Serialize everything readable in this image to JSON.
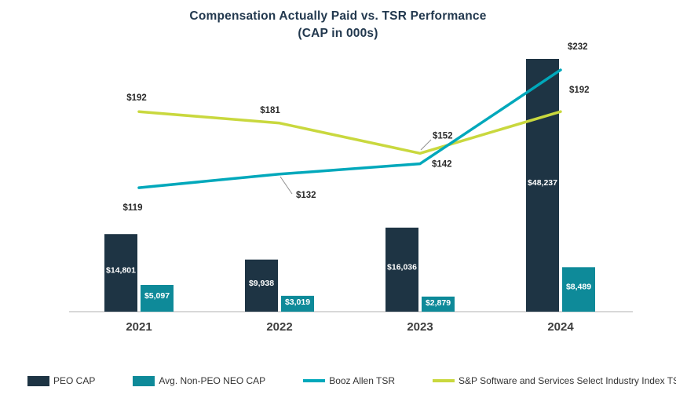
{
  "title": {
    "line1": "Compensation Actually Paid vs. TSR Performance",
    "line2": "(CAP in 000s)"
  },
  "colors": {
    "peo": "#1e3444",
    "neo": "#0e8a99",
    "booz_line": "#00a8bb",
    "sp_line": "#c9d83e",
    "axis": "#cccccc",
    "leader": "#909090"
  },
  "chart_data": {
    "type": "bar+line combo",
    "categories": [
      "2021",
      "2022",
      "2023",
      "2024"
    ],
    "series": [
      {
        "name": "PEO CAP",
        "type": "bar",
        "values": [
          14801,
          9938,
          16036,
          48237
        ],
        "labels": [
          "$14,801",
          "$9,938",
          "$16,036",
          "$48,237"
        ]
      },
      {
        "name": "Avg. Non-PEO NEO CAP",
        "type": "bar",
        "values": [
          5097,
          3019,
          2879,
          8489
        ],
        "labels": [
          "$5,097",
          "$3,019",
          "$2,879",
          "$8,489"
        ]
      },
      {
        "name": "Booz Allen TSR",
        "type": "line",
        "values": [
          119,
          132,
          142,
          232
        ],
        "labels": [
          "$119",
          "$132",
          "$142",
          "$232"
        ]
      },
      {
        "name": "S&P Software and Services Select Industry Index TSR",
        "type": "line",
        "values": [
          192,
          181,
          152,
          192
        ],
        "labels": [
          "$192",
          "$181",
          "$152",
          "$192"
        ]
      }
    ],
    "title": "Compensation Actually Paid vs. TSR Performance (CAP in 000s)",
    "xlabel": "",
    "ylabel": "",
    "ylim_bar": [
      0,
      50000
    ],
    "ylim_tsr": [
      0,
      250
    ],
    "grid": false,
    "legend_position": "bottom"
  },
  "legend": {
    "items": [
      {
        "label": "PEO CAP",
        "swatch": "bar",
        "color_key": "peo"
      },
      {
        "label": "Avg. Non-PEO NEO CAP",
        "swatch": "bar",
        "color_key": "neo"
      },
      {
        "label": "Booz Allen TSR",
        "swatch": "line",
        "color_key": "booz_line"
      },
      {
        "label": "S&P Software and Services Select Industry Index TSR",
        "swatch": "line",
        "color_key": "sp_line"
      }
    ]
  }
}
